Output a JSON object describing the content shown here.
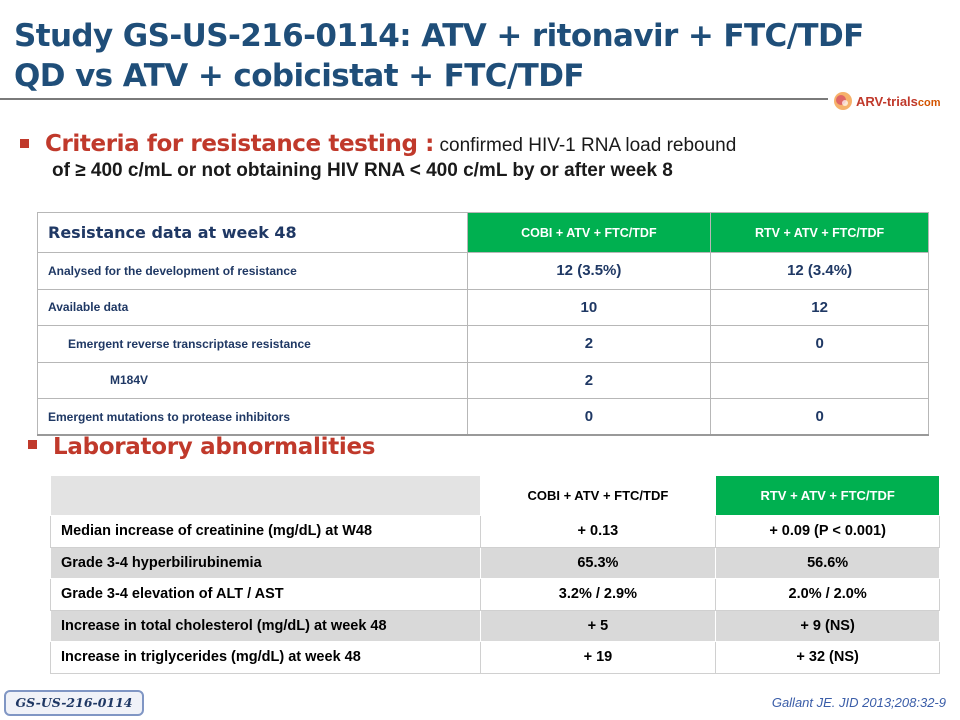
{
  "title": {
    "line1": "Study GS-US-216-0114: ATV + ritonavir + FTC/TDF",
    "line2": "QD vs ATV + cobicistat + FTC/TDF"
  },
  "logo": {
    "brand": "ARV-trials",
    "suffix": "com"
  },
  "criteria": {
    "heading": "Criteria for resistance testing :",
    "description": "confirmed HIV-1 RNA load rebound",
    "line2": "of ≥ 400 c/mL or not obtaining HIV RNA  < 400 c/mL by or after week 8"
  },
  "resistance_table": {
    "title": "Resistance data at week 48",
    "col1": "COBI + ATV + FTC/TDF",
    "col2": "RTV + ATV + FTC/TDF",
    "rows": [
      {
        "label": "Analysed for the development of resistance",
        "v1": "12 (3.5%)",
        "v2": "12 (3.4%)"
      },
      {
        "label": "Available data",
        "v1": "10",
        "v2": "12"
      },
      {
        "label": "Emergent reverse transcriptase resistance",
        "v1": "2",
        "v2": "0"
      },
      {
        "label": "M184V",
        "v1": "2",
        "v2": ""
      },
      {
        "label": "Emergent mutations to protease inhibitors",
        "v1": "0",
        "v2": "0"
      }
    ]
  },
  "lab": {
    "heading": "Laboratory abnormalities",
    "col1": "COBI + ATV + FTC/TDF",
    "col2": "RTV + ATV + FTC/TDF",
    "rows": [
      {
        "label": "Median increase of creatinine (mg/dL) at W48",
        "v1": "+ 0.13",
        "v2": "+ 0.09 (P < 0.001)"
      },
      {
        "label": "Grade 3-4 hyperbilirubinemia",
        "v1": "65.3%",
        "v2": "56.6%"
      },
      {
        "label": "Grade 3-4 elevation of ALT / AST",
        "v1": "3.2% / 2.9%",
        "v2": "2.0% / 2.0%"
      },
      {
        "label": "Increase in total cholesterol (mg/dL) at week 48",
        "v1": "+ 5",
        "v2": "+ 9 (NS)"
      },
      {
        "label": "Increase in triglycerides (mg/dL) at week 48",
        "v1": "+ 19",
        "v2": "+ 32 (NS)"
      }
    ]
  },
  "footer": {
    "tag": "GS-US-216-0114",
    "citation": "Gallant JE. JID 2013;208:32-9"
  }
}
